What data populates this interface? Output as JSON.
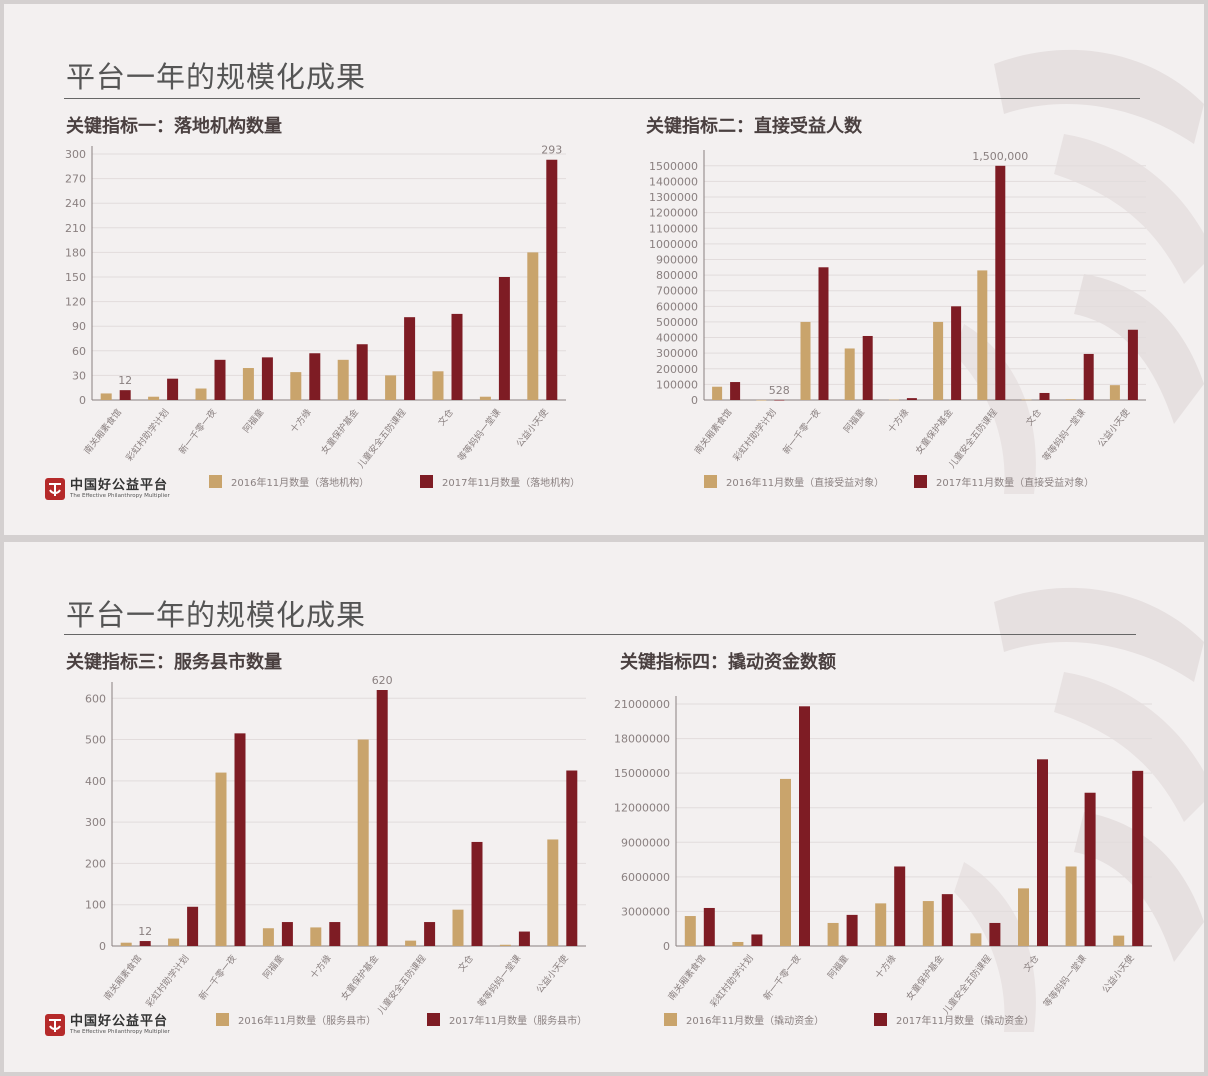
{
  "slides": [
    {
      "title": "平台一年的规模化成果"
    },
    {
      "title": "平台一年的规模化成果"
    }
  ],
  "logo": {
    "cn": "中国好公益平台",
    "en": "The Effective Philanthropy Multiplier"
  },
  "colors": {
    "series_2016": "#c9a46c",
    "series_2017": "#7e1c24",
    "grid": "#e2dcdc",
    "axis": "#8a8080",
    "text": "#8a8080"
  },
  "chart_data": [
    {
      "type": "bar",
      "title": "关键指标一：落地机构数量",
      "categories": [
        "南关厢素食馆",
        "彩虹村助学计划",
        "新一千零一夜",
        "阿福童",
        "十方缘",
        "女童保护基金",
        "儿童安全五防课程",
        "文仓",
        "等等妈妈一堂课",
        "公益小天使"
      ],
      "series": [
        {
          "name": "2016年11月数量（落地机构）",
          "values": [
            8,
            4,
            14,
            39,
            34,
            49,
            30,
            35,
            4,
            180
          ]
        },
        {
          "name": "2017年11月数量（落地机构）",
          "values": [
            12,
            26,
            49,
            52,
            57,
            68,
            101,
            105,
            150,
            293
          ]
        }
      ],
      "yticks": [
        0,
        30,
        60,
        90,
        120,
        150,
        180,
        210,
        240,
        270,
        300
      ],
      "ylim": [
        0,
        300
      ],
      "data_labels": [
        {
          "category": 0,
          "series": 1,
          "text": "12"
        },
        {
          "category": 9,
          "series": 1,
          "text": "293"
        }
      ],
      "grid": true,
      "legend": "bottom"
    },
    {
      "type": "bar",
      "title": "关键指标二：直接受益人数",
      "categories": [
        "南关厢素食馆",
        "彩虹村助学计划",
        "新一千零一夜",
        "阿福童",
        "十方缘",
        "女童保护基金",
        "儿童安全五防课程",
        "文仓",
        "等等妈妈一堂课",
        "公益小天使"
      ],
      "series": [
        {
          "name": "2016年11月数量（直接受益对象）",
          "values": [
            85000,
            400,
            500000,
            330000,
            3000,
            500000,
            830000,
            3000,
            5000,
            95000
          ]
        },
        {
          "name": "2017年11月数量（直接受益对象）",
          "values": [
            115000,
            528,
            850000,
            410000,
            12000,
            600000,
            1500000,
            45000,
            295000,
            450000
          ]
        }
      ],
      "yticks": [
        0,
        100000,
        200000,
        300000,
        400000,
        500000,
        600000,
        700000,
        800000,
        900000,
        1000000,
        1100000,
        1200000,
        1300000,
        1400000,
        1500000
      ],
      "ylim": [
        0,
        1550000
      ],
      "data_labels": [
        {
          "category": 1,
          "series": 1,
          "text": "528"
        },
        {
          "category": 6,
          "series": 1,
          "text": "1,500,000"
        }
      ],
      "grid": true,
      "legend": "bottom"
    },
    {
      "type": "bar",
      "title": "关键指标三：服务县市数量",
      "categories": [
        "南关厢素食馆",
        "彩虹村助学计划",
        "新一千零一夜",
        "阿福童",
        "十方缘",
        "女童保护基金",
        "儿童安全五防课程",
        "文仓",
        "等等妈妈一堂课",
        "公益小天使"
      ],
      "series": [
        {
          "name": "2016年11月数量（服务县市）",
          "values": [
            8,
            18,
            420,
            43,
            45,
            500,
            13,
            88,
            3,
            258
          ]
        },
        {
          "name": "2017年11月数量（服务县市）",
          "values": [
            12,
            95,
            515,
            58,
            58,
            620,
            58,
            252,
            35,
            425
          ]
        }
      ],
      "yticks": [
        0,
        100,
        200,
        300,
        400,
        500,
        600
      ],
      "ylim": [
        0,
        620
      ],
      "data_labels": [
        {
          "category": 0,
          "series": 1,
          "text": "12"
        },
        {
          "category": 5,
          "series": 1,
          "text": "620"
        }
      ],
      "grid": true,
      "legend": "bottom"
    },
    {
      "type": "bar",
      "title": "关键指标四：撬动资金数额",
      "categories": [
        "南关厢素食馆",
        "彩虹村助学计划",
        "新一千零一夜",
        "阿福童",
        "十方缘",
        "女童保护基金",
        "儿童安全五防课程",
        "文仓",
        "等等妈妈一堂课",
        "公益小天使"
      ],
      "series": [
        {
          "name": "2016年11月数量（撬动资金）",
          "values": [
            2600000,
            350000,
            14500000,
            2000000,
            3700000,
            3900000,
            1100000,
            5000000,
            6900000,
            900000
          ]
        },
        {
          "name": "2017年11月数量（撬动资金）",
          "values": [
            3300000,
            1000000,
            20800000,
            2700000,
            6900000,
            4500000,
            2000000,
            16200000,
            13300000,
            15200000
          ]
        }
      ],
      "yticks": [
        0,
        3000000,
        6000000,
        9000000,
        12000000,
        15000000,
        18000000,
        21000000
      ],
      "ylim": [
        0,
        21000000
      ],
      "data_labels": [],
      "grid": true,
      "legend": "bottom"
    }
  ]
}
